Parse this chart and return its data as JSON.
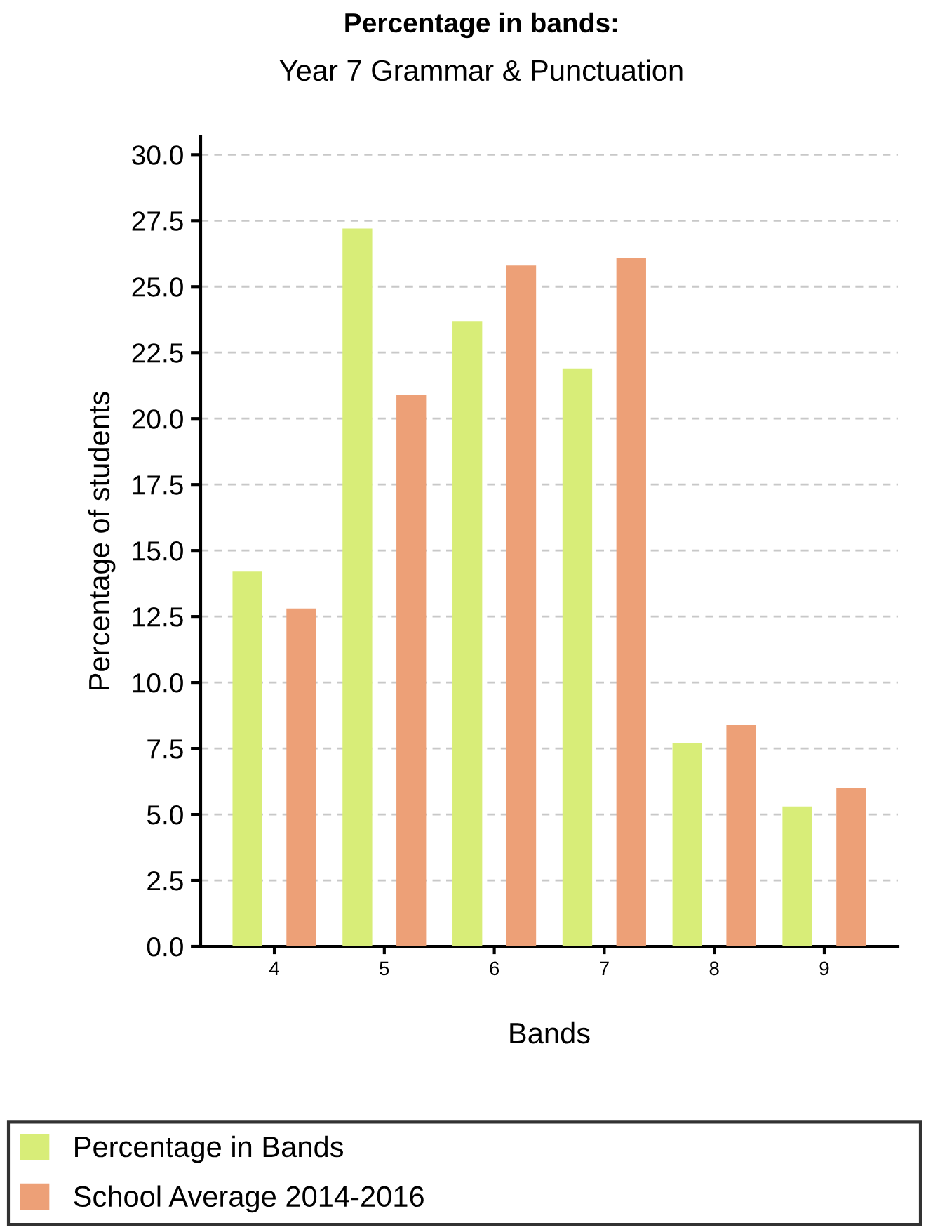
{
  "chart_data": {
    "type": "bar",
    "title": "Percentage in bands:",
    "subtitle": "Year 7 Grammar & Punctuation",
    "xlabel": "Bands",
    "ylabel": "Percentage of students",
    "categories": [
      "4",
      "5",
      "6",
      "7",
      "8",
      "9"
    ],
    "series": [
      {
        "name": "Percentage in Bands",
        "color": "#d8ed78",
        "values": [
          14.2,
          27.2,
          23.7,
          21.9,
          7.7,
          5.3
        ]
      },
      {
        "name": "School Average 2014-2016",
        "color": "#eda077",
        "values": [
          12.8,
          20.9,
          25.8,
          26.1,
          8.4,
          6.0
        ]
      }
    ],
    "ylim": [
      0,
      30.7
    ],
    "yticks": [
      {
        "value": 0,
        "label": "0.0"
      },
      2.5,
      {
        "value": 5,
        "label": "5.0"
      },
      7.5,
      {
        "value": 10,
        "label": "10.0"
      },
      12.5,
      {
        "value": 15,
        "label": "15.0"
      },
      17.5,
      {
        "value": 20,
        "label": "20.0"
      },
      22.5,
      {
        "value": 25,
        "label": "25.0"
      },
      27.5,
      {
        "value": 30,
        "label": "30.0"
      }
    ],
    "grid": "y",
    "legend": "bottom"
  }
}
